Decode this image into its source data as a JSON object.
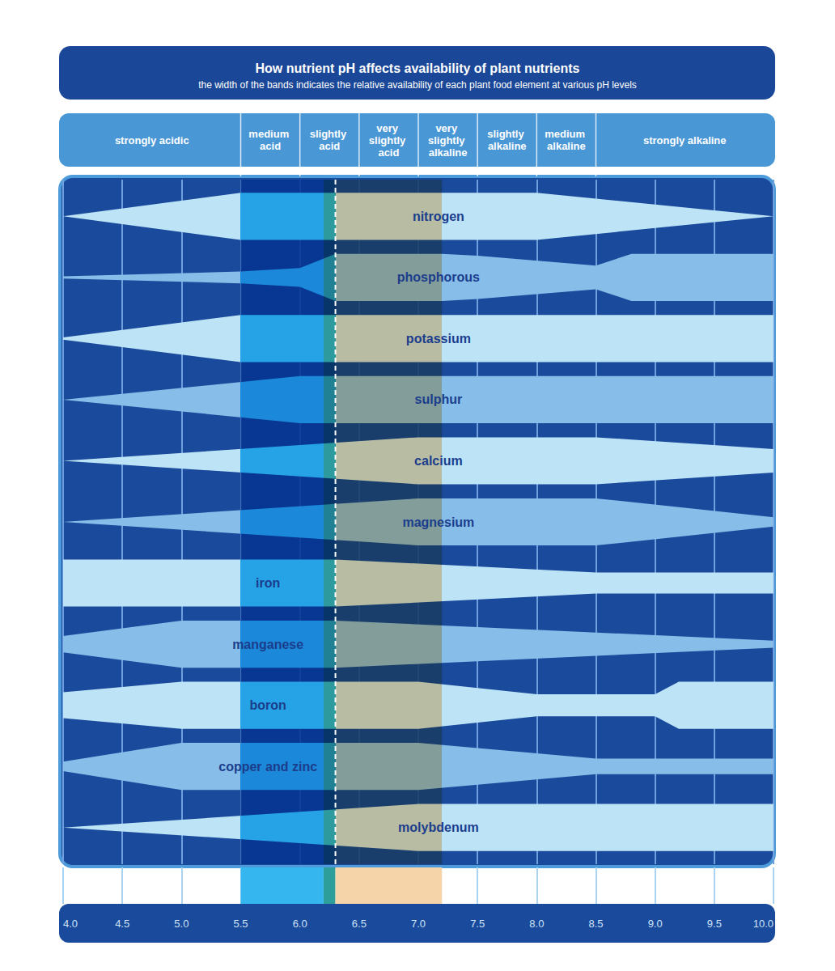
{
  "chart_data": {
    "type": "spindle",
    "title": "How nutrient pH affects availability of plant nutrients",
    "subtitle": "the width of the bands indicates the relative availability of each plant food element at various pH levels",
    "ph_ranges": [
      {
        "label": "strongly acidic",
        "range": [
          4.0,
          5.5
        ]
      },
      {
        "label": "medium acid",
        "range": [
          5.5,
          6.0
        ]
      },
      {
        "label": "slightly acid",
        "range": [
          6.0,
          6.5
        ]
      },
      {
        "label": "very slightly acid",
        "range": [
          6.5,
          7.0
        ]
      },
      {
        "label": "very slightly alkaline",
        "range": [
          7.0,
          7.5
        ]
      },
      {
        "label": "slightly alkaline",
        "range": [
          7.5,
          8.0
        ]
      },
      {
        "label": "medium alkaline",
        "range": [
          8.0,
          8.5
        ]
      },
      {
        "label": "strongly alkaline",
        "range": [
          8.5,
          10.0
        ]
      }
    ],
    "series": [
      {
        "name": "nitrogen",
        "color": "#bde3f7",
        "x": [
          4.0,
          5.5,
          8.0,
          10.0
        ],
        "values": [
          0,
          1,
          1,
          0
        ]
      },
      {
        "name": "phosphorous",
        "color": "#86bde9",
        "x": [
          4.0,
          5.5,
          6.0,
          6.3,
          7.2,
          7.5,
          8.5,
          8.8,
          10.0
        ],
        "values": [
          0.05,
          0.25,
          0.4,
          1,
          1,
          0.92,
          0.5,
          1,
          1
        ]
      },
      {
        "name": "potassium",
        "color": "#bde3f7",
        "x": [
          4.0,
          5.5,
          10.0
        ],
        "values": [
          0.05,
          1,
          1
        ]
      },
      {
        "name": "sulphur",
        "color": "#86bde9",
        "x": [
          4.0,
          6.0,
          10.0
        ],
        "values": [
          0,
          1,
          1
        ]
      },
      {
        "name": "calcium",
        "color": "#bde3f7",
        "x": [
          4.0,
          7.0,
          8.5,
          10.0
        ],
        "values": [
          0,
          1,
          1,
          0.5
        ]
      },
      {
        "name": "magnesium",
        "color": "#86bde9",
        "x": [
          4.0,
          7.0,
          8.5,
          10.0
        ],
        "values": [
          0,
          1,
          1,
          0.2
        ]
      },
      {
        "name": "iron",
        "color": "#bde3f7",
        "x": [
          4.0,
          6.3,
          8.5,
          10.0
        ],
        "values": [
          1,
          1,
          0.45,
          0.45
        ]
      },
      {
        "name": "manganese",
        "color": "#86bde9",
        "x": [
          4.0,
          5.0,
          6.3,
          10.0
        ],
        "values": [
          0.35,
          1,
          1,
          0.15
        ]
      },
      {
        "name": "boron",
        "color": "#bde3f7",
        "x": [
          4.0,
          5.0,
          7.0,
          8.0,
          9.0,
          9.2,
          10.0
        ],
        "values": [
          0.55,
          1,
          1,
          0.47,
          0.47,
          1,
          1
        ]
      },
      {
        "name": "copper and zinc",
        "color": "#86bde9",
        "x": [
          4.0,
          5.0,
          7.0,
          8.5,
          10.0
        ],
        "values": [
          0.2,
          1,
          1,
          0.33,
          0.33
        ]
      },
      {
        "name": "molybdenum",
        "color": "#bde3f7",
        "x": [
          4.0,
          7.0,
          10.0
        ],
        "values": [
          0,
          1,
          1
        ]
      }
    ],
    "zones": [
      [
        5.5,
        6.2
      ],
      [
        6.2,
        6.3
      ],
      [
        6.3,
        7.2
      ]
    ],
    "reference_line": {
      "x": 6.3,
      "line_style": "dashed"
    },
    "xlim": [
      4,
      10
    ],
    "xticks": [
      {
        "value": 4,
        "label": "4.0"
      },
      4.5,
      {
        "value": 5,
        "label": "5.0"
      },
      5.5,
      {
        "value": 6,
        "label": "6.0"
      },
      6.5,
      {
        "value": 7,
        "label": "7.0"
      },
      7.5,
      {
        "value": 8,
        "label": "8.0"
      },
      8.5,
      {
        "value": 9,
        "label": "9.0"
      },
      9.5,
      {
        "value": 10,
        "label": "10.0"
      }
    ],
    "ylim": [
      0,
      1
    ],
    "grid": true,
    "tick_labels": "x"
  }
}
